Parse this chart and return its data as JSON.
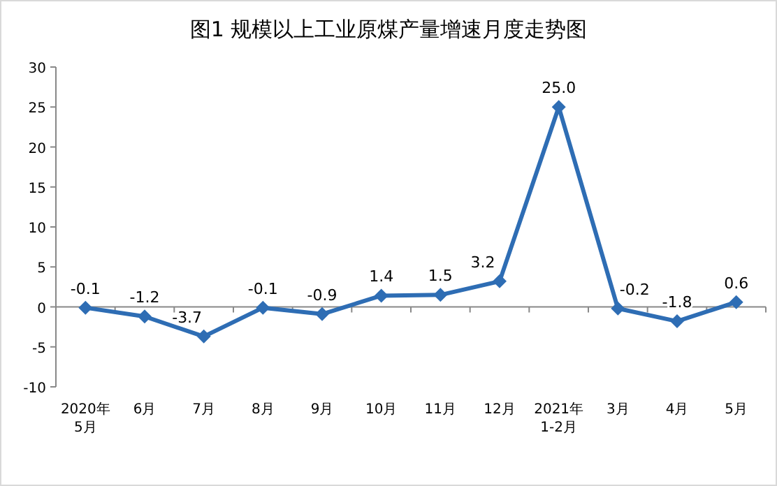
{
  "chart_data": {
    "type": "line",
    "title": "图1 规模以上工业原煤产量增速月度走势图",
    "categories": [
      "2020年 5月",
      "6月",
      "7月",
      "8月",
      "9月",
      "10月",
      "11月",
      "12月",
      "2021年 1-2月",
      "3月",
      "4月",
      "5月"
    ],
    "series": [
      {
        "color": "#2e6db4",
        "values": [
          -0.1,
          -1.2,
          -3.7,
          -0.1,
          -0.9,
          1.4,
          1.5,
          3.2,
          25.0,
          -0.2,
          -1.8,
          0.6
        ],
        "value_labels": [
          "-0.1",
          "-1.2",
          "-3.7",
          "-0.1",
          "-0.9",
          "1.4",
          "1.5",
          "3.2",
          "25.0",
          "-0.2",
          "-1.8",
          "0.6"
        ]
      }
    ],
    "ylim": [
      -10,
      30
    ],
    "yticks": [
      -10,
      -5,
      0,
      5,
      10,
      15,
      20,
      25,
      30
    ],
    "marker": "diamond",
    "line_style": "solid"
  }
}
